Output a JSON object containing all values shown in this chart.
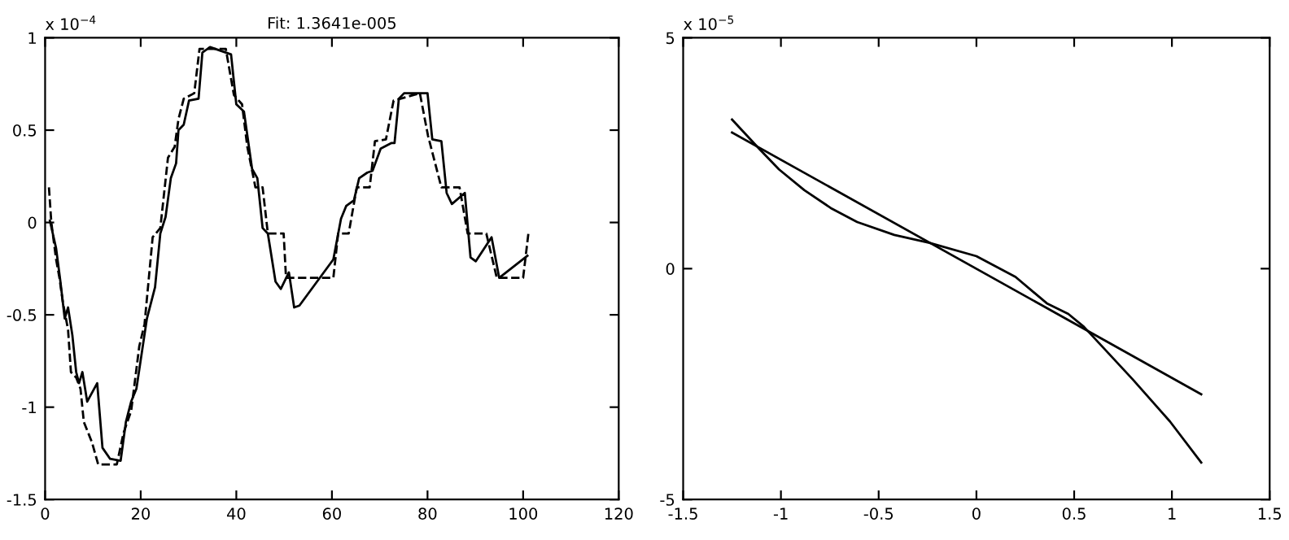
{
  "chart_data": [
    {
      "type": "line",
      "title": "Fit: 1.3641e-005",
      "annotations": [
        "x 10$^{−4}$"
      ],
      "xlim": [
        0,
        120
      ],
      "ylim": [
        -1.5,
        1
      ],
      "xticks": [
        0,
        20,
        40,
        60,
        80,
        100,
        120
      ],
      "yticks": [
        -1.5,
        -1,
        -0.5,
        0,
        0.5,
        1
      ],
      "grid": false,
      "series": [
        {
          "color": "#000000",
          "line_style": "solid",
          "x": [
            1,
            2.3,
            3.2,
            4.1,
            4.8,
            5.7,
            6.5,
            7.1,
            7.8,
            8.8,
            10.9,
            12,
            13.6,
            15.8,
            16.9,
            18,
            19.1,
            21.3,
            23,
            24.1,
            25.2,
            26.3,
            27.4,
            27.9,
            29,
            30.1,
            32.1,
            32.9,
            34.5,
            38.9,
            40,
            41.6,
            43.3,
            44.4,
            45.5,
            46.6,
            48.2,
            49.3,
            51,
            52.1,
            53.2,
            60.3,
            61.9,
            63,
            64.6,
            65.7,
            67.4,
            68.5,
            70.2,
            72.4,
            73.1,
            74,
            75.1,
            80,
            81,
            82.9,
            84,
            85.1,
            87.8,
            89,
            90.1,
            93.4,
            95,
            100.9
          ],
          "values": [
            0.01,
            -0.14,
            -0.32,
            -0.52,
            -0.46,
            -0.61,
            -0.81,
            -0.87,
            -0.81,
            -0.97,
            -0.87,
            -1.22,
            -1.28,
            -1.29,
            -1.08,
            -0.97,
            -0.9,
            -0.52,
            -0.35,
            -0.06,
            0.03,
            0.24,
            0.32,
            0.5,
            0.53,
            0.66,
            0.67,
            0.92,
            0.95,
            0.91,
            0.64,
            0.6,
            0.29,
            0.24,
            -0.03,
            -0.06,
            -0.32,
            -0.36,
            -0.27,
            -0.46,
            -0.45,
            -0.2,
            0.02,
            0.09,
            0.12,
            0.24,
            0.27,
            0.28,
            0.4,
            0.43,
            0.43,
            0.67,
            0.7,
            0.7,
            0.45,
            0.44,
            0.16,
            0.1,
            0.16,
            -0.19,
            -0.21,
            -0.08,
            -0.3,
            -0.18
          ]
        },
        {
          "color": "#000000",
          "line_style": "dashed",
          "x": [
            0.8,
            1.3,
            2.3,
            3,
            3.7,
            4.8,
            5.4,
            6.5,
            7.4,
            8.1,
            9.8,
            11.1,
            15,
            16.4,
            18,
            19.7,
            20.8,
            22.5,
            24.1,
            25.7,
            27.1,
            27.9,
            29,
            31.2,
            32.3,
            37.8,
            39.5,
            41.2,
            42.3,
            44,
            45.5,
            46.6,
            49.9,
            50.4,
            60.3,
            61.3,
            63.5,
            65.2,
            67.9,
            69,
            71.3,
            72.9,
            78.4,
            80.1,
            82.9,
            86.7,
            88.4,
            92.3,
            94.5,
            100,
            101.1
          ],
          "values": [
            0.19,
            0,
            -0.2,
            -0.3,
            -0.43,
            -0.58,
            -0.81,
            -0.84,
            -0.9,
            -1.08,
            -1.19,
            -1.31,
            -1.31,
            -1.14,
            -1.02,
            -0.67,
            -0.55,
            -0.08,
            -0.03,
            0.35,
            0.41,
            0.56,
            0.67,
            0.7,
            0.94,
            0.94,
            0.69,
            0.64,
            0.41,
            0.19,
            0.19,
            -0.06,
            -0.06,
            -0.3,
            -0.3,
            -0.06,
            -0.06,
            0.19,
            0.19,
            0.44,
            0.45,
            0.66,
            0.7,
            0.47,
            0.19,
            0.19,
            -0.06,
            -0.06,
            -0.3,
            -0.3,
            -0.06
          ]
        }
      ]
    },
    {
      "type": "line",
      "annotations": [
        "x 10$^{−5}$"
      ],
      "xlim": [
        -1.5,
        1.5
      ],
      "ylim": [
        -5,
        5
      ],
      "xticks": [
        -1.5,
        -1,
        -0.5,
        0,
        0.5,
        1,
        1.5
      ],
      "yticks": [
        -5,
        0,
        5
      ],
      "grid": false,
      "series": [
        {
          "color": "#000000",
          "line_style": "solid",
          "x": [
            -1.25,
            1.15
          ],
          "values": [
            2.95,
            -2.72
          ]
        },
        {
          "color": "#000000",
          "line_style": "solid",
          "x": [
            -1.25,
            -1.11,
            -1.01,
            -0.88,
            -0.74,
            -0.61,
            -0.42,
            -0.24,
            0,
            0.2,
            0.36,
            0.47,
            0.55,
            0.8,
            0.99,
            1.15
          ],
          "values": [
            3.23,
            2.59,
            2.15,
            1.7,
            1.3,
            1.01,
            0.73,
            0.56,
            0.27,
            -0.18,
            -0.75,
            -0.98,
            -1.26,
            -2.4,
            -3.31,
            -4.2
          ]
        }
      ]
    }
  ]
}
